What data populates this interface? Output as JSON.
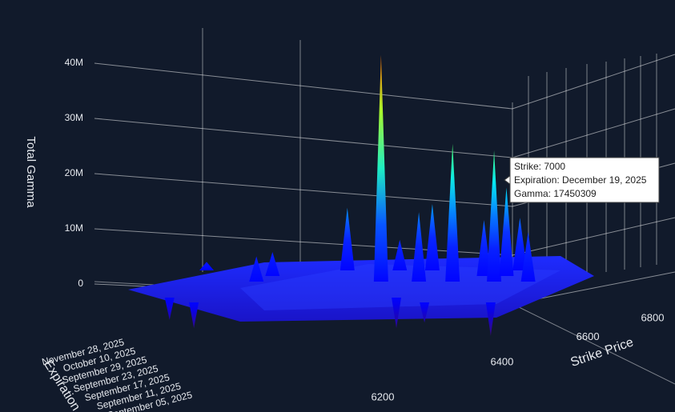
{
  "chart_data": {
    "type": "surface3d",
    "zlabel": "Total Gamma",
    "xlabel": "Strike Price",
    "ylabel": "Expiration",
    "x": [
      6165,
      6100,
      6199,
      6332,
      6375,
      6575,
      6665,
      6706,
      6715,
      6766,
      6781,
      6802,
      6856,
      6940,
      6958,
      6967,
      7000,
      7036,
      7058
    ],
    "values": [
      -8000000,
      -6500000,
      4000000,
      5000000,
      5800000,
      13800000,
      41500000,
      -8000000,
      8000000,
      13000000,
      -7000000,
      14500000,
      25400000,
      11600000,
      -9400000,
      24200000,
      17450309,
      12000000,
      9400000
    ],
    "xlim": [
      6000,
      7230
    ],
    "xticks": [
      6200,
      6400,
      6600,
      6800
    ],
    "zlim": [
      -10000000,
      45000000
    ],
    "zticks": [
      0,
      {
        "value": 10000000,
        "label": "10M"
      },
      {
        "value": 20000000,
        "label": "20M"
      },
      {
        "value": 30000000,
        "label": "30M"
      },
      {
        "value": 40000000,
        "label": "40M"
      }
    ],
    "expirations": [
      "September 05, 2025",
      "September 11, 2025",
      "September 17, 2025",
      "September 23, 2025",
      "September 29, 2025",
      "October 10, 2025",
      "November 28, 2025"
    ],
    "colorscale": [
      "#3a0a6e",
      "#0000ff",
      "#0a2cff",
      "#00e5ff",
      "#55ff55",
      "#ffee00",
      "#ff2000"
    ],
    "tooltip": [
      "Strike: 7000",
      "Expiration: December 19, 2025",
      "Gamma: 17450309"
    ]
  }
}
